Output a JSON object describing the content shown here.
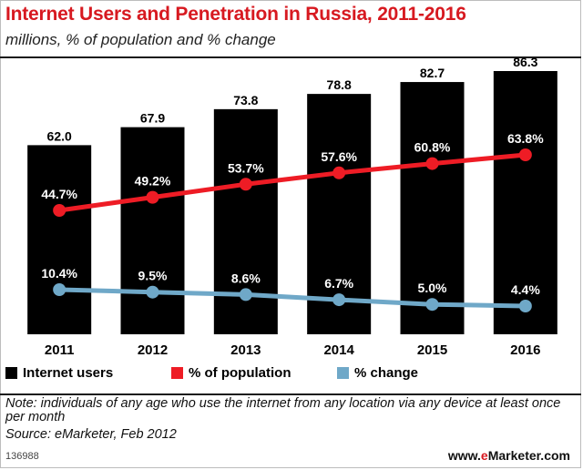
{
  "header": {
    "title": "Internet Users and Penetration in Russia, 2011-2016",
    "subtitle": "millions, % of population and % change"
  },
  "chart_data": {
    "type": "bar",
    "categories": [
      "2011",
      "2012",
      "2013",
      "2014",
      "2015",
      "2016"
    ],
    "series": [
      {
        "name": "Internet users",
        "type": "bar",
        "color": "#000000",
        "values": [
          62.0,
          67.9,
          73.8,
          78.8,
          82.7,
          86.3
        ],
        "labels": [
          "62.0",
          "67.9",
          "73.8",
          "78.8",
          "82.7",
          "86.3"
        ]
      },
      {
        "name": "% of population",
        "type": "line",
        "color": "#ee1c25",
        "values": [
          44.7,
          49.2,
          53.7,
          57.6,
          60.8,
          63.8
        ],
        "labels": [
          "44.7%",
          "49.2%",
          "53.7%",
          "57.6%",
          "60.8%",
          "63.8%"
        ]
      },
      {
        "name": "% change",
        "type": "line",
        "color": "#6fa8c8",
        "values": [
          10.4,
          9.5,
          8.6,
          6.7,
          5.0,
          4.4
        ],
        "labels": [
          "10.4%",
          "9.5%",
          "8.6%",
          "6.7%",
          "5.0%",
          "4.4%"
        ]
      }
    ],
    "legend_position": "bottom",
    "grid": false
  },
  "footer": {
    "note": "Note: individuals of any age who use the internet from any location via any device at least once per month",
    "source": "Source: eMarketer, Feb 2012",
    "chart_id": "136988",
    "brand_prefix": "www.",
    "brand_e": "e",
    "brand_rest": "Marketer.com"
  }
}
